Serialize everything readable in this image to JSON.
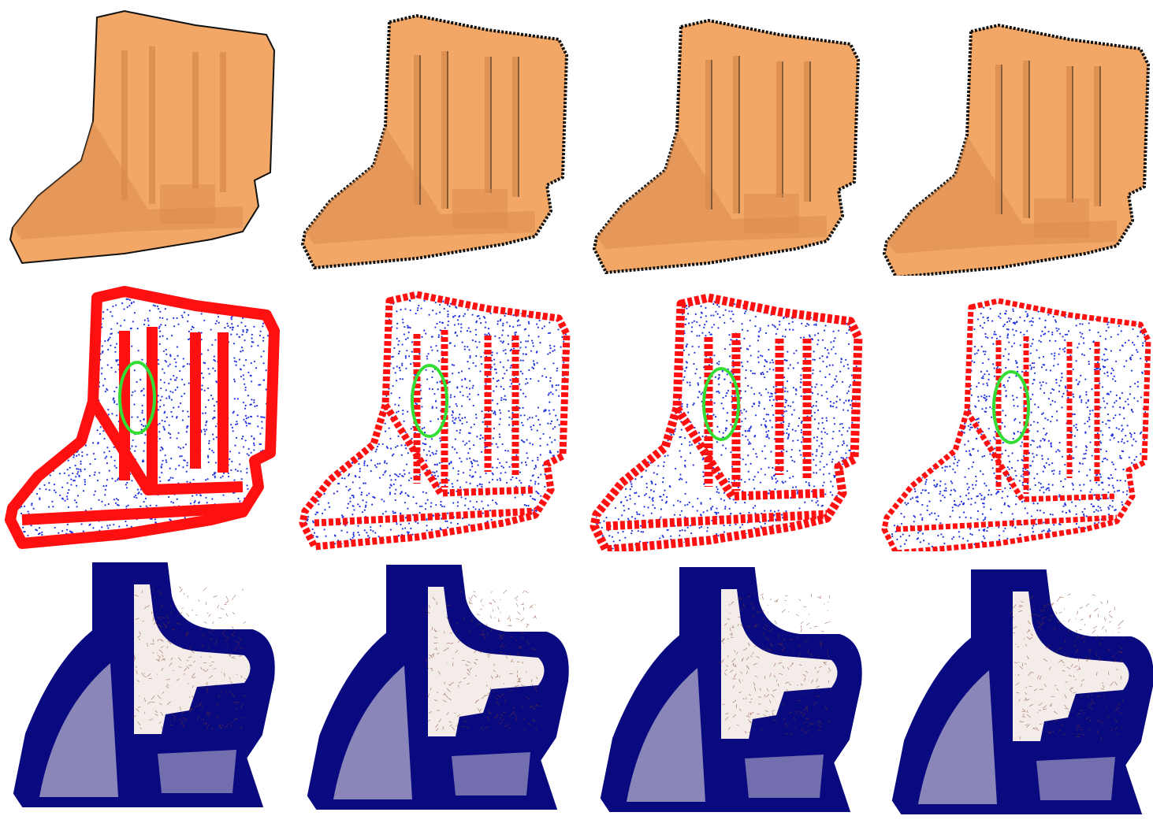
{
  "figure": {
    "rows": [
      {
        "id": "surface-reconstruction",
        "colors": {
          "fill": "#f3a766",
          "shade": "#d98c4f",
          "edge": "#111111"
        }
      },
      {
        "id": "point-cloud-features",
        "colors": {
          "points": "#2233dd",
          "edges": "#ff1010",
          "ellipse": "#33dd33"
        }
      },
      {
        "id": "normal-field",
        "colors": {
          "normals": "#0a0a80",
          "interior": "#f4ece8"
        }
      }
    ],
    "columns": 4,
    "icons": [
      "boot-mesh-render",
      "feature-point-cloud",
      "normal-vector-field",
      "highlight-ellipse"
    ]
  }
}
